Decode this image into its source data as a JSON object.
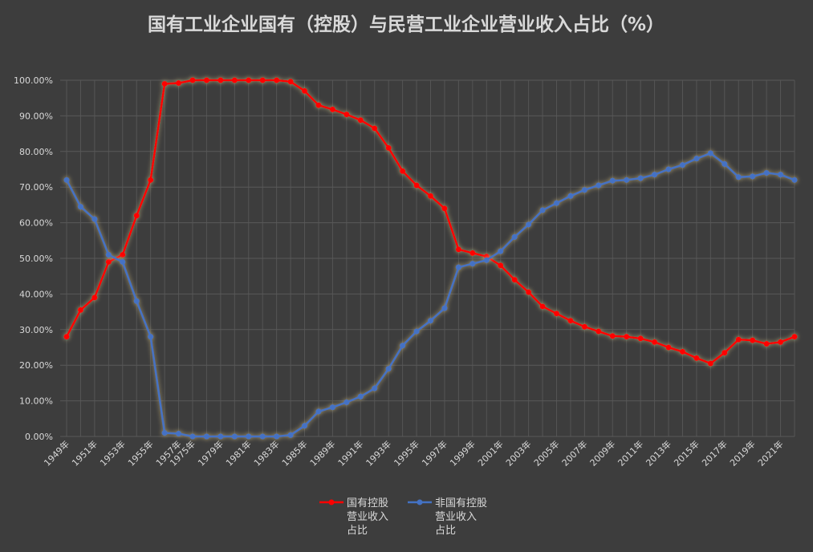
{
  "chart_data": {
    "type": "line",
    "title": "国有工业企业国有（控股）与民营工业企业营业收入占比（%）",
    "ylim": [
      0,
      100
    ],
    "yticks": [
      "0.00%",
      "10.00%",
      "20.00%",
      "30.00%",
      "40.00%",
      "50.00%",
      "60.00%",
      "70.00%",
      "80.00%",
      "90.00%",
      "100.00%"
    ],
    "x": [
      "1949年",
      "1950年",
      "1951年",
      "1952年",
      "1953年",
      "1954年",
      "1955年",
      "1956年",
      "1957年",
      "1975年",
      "1978年",
      "1979年",
      "1980年",
      "1981年",
      "1982年",
      "1983年",
      "1984年",
      "1985年",
      "1988年",
      "1989年",
      "1990年",
      "1991年",
      "1992年",
      "1993年",
      "1994年",
      "1995年",
      "1996年",
      "1997年",
      "1998年",
      "1999年",
      "2000年",
      "2001年",
      "2002年",
      "2003年",
      "2004年",
      "2005年",
      "2006年",
      "2007年",
      "2008年",
      "2009年",
      "2010年",
      "2011年",
      "2012年",
      "2013年",
      "2014年",
      "2015年",
      "2016年",
      "2017年",
      "2018年",
      "2019年",
      "2020年",
      "2021年",
      "2022年"
    ],
    "xticks_shown": [
      "1949年",
      "1951年",
      "1953年",
      "1955年",
      "1957年",
      "1975年",
      "1979年",
      "1981年",
      "1983年",
      "1985年",
      "1989年",
      "1991年",
      "1993年",
      "1995年",
      "1997年",
      "1999年",
      "2001年",
      "2003年",
      "2005年",
      "2007年",
      "2009年",
      "2011年",
      "2013年",
      "2015年",
      "2017年",
      "2019年",
      "2021年"
    ],
    "series": [
      {
        "name": "国有控股营业收入占比",
        "color": "#ff0000",
        "values": [
          28.0,
          35.5,
          39.0,
          49.0,
          51.0,
          62.0,
          72.0,
          99.0,
          99.2,
          100,
          100,
          100,
          100,
          100,
          100,
          100,
          99.6,
          97.0,
          93.0,
          91.8,
          90.4,
          88.8,
          86.5,
          81.0,
          74.5,
          70.5,
          67.5,
          64.0,
          52.5,
          51.5,
          50.5,
          48.0,
          44.0,
          40.5,
          36.5,
          34.5,
          32.5,
          30.8,
          29.5,
          28.2,
          28.0,
          27.5,
          26.5,
          25.0,
          23.8,
          22.0,
          20.5,
          23.5,
          27.2,
          27.0,
          26.0,
          26.5,
          28.0
        ]
      },
      {
        "name": "非国有控股营业收入占比",
        "color": "#4472c4",
        "values": [
          72.0,
          64.5,
          61.0,
          51.0,
          49.0,
          38.0,
          28.0,
          1.0,
          0.8,
          0,
          0,
          0,
          0,
          0,
          0,
          0,
          0.4,
          3.0,
          7.0,
          8.2,
          9.6,
          11.2,
          13.5,
          19.0,
          25.5,
          29.5,
          32.5,
          36.0,
          47.5,
          48.5,
          49.5,
          52.0,
          56.0,
          59.5,
          63.5,
          65.5,
          67.5,
          69.2,
          70.5,
          71.8,
          72.0,
          72.5,
          73.5,
          75.0,
          76.2,
          78.0,
          79.5,
          76.5,
          72.8,
          73.0,
          74.0,
          73.5,
          72.0
        ]
      }
    ],
    "legend": {
      "position": "bottom",
      "entries": [
        {
          "lines": [
            "国有控股",
            "营业收入",
            "占比"
          ]
        },
        {
          "lines": [
            "非国有控股",
            "营业收入",
            "占比"
          ]
        }
      ]
    },
    "grid": true
  }
}
